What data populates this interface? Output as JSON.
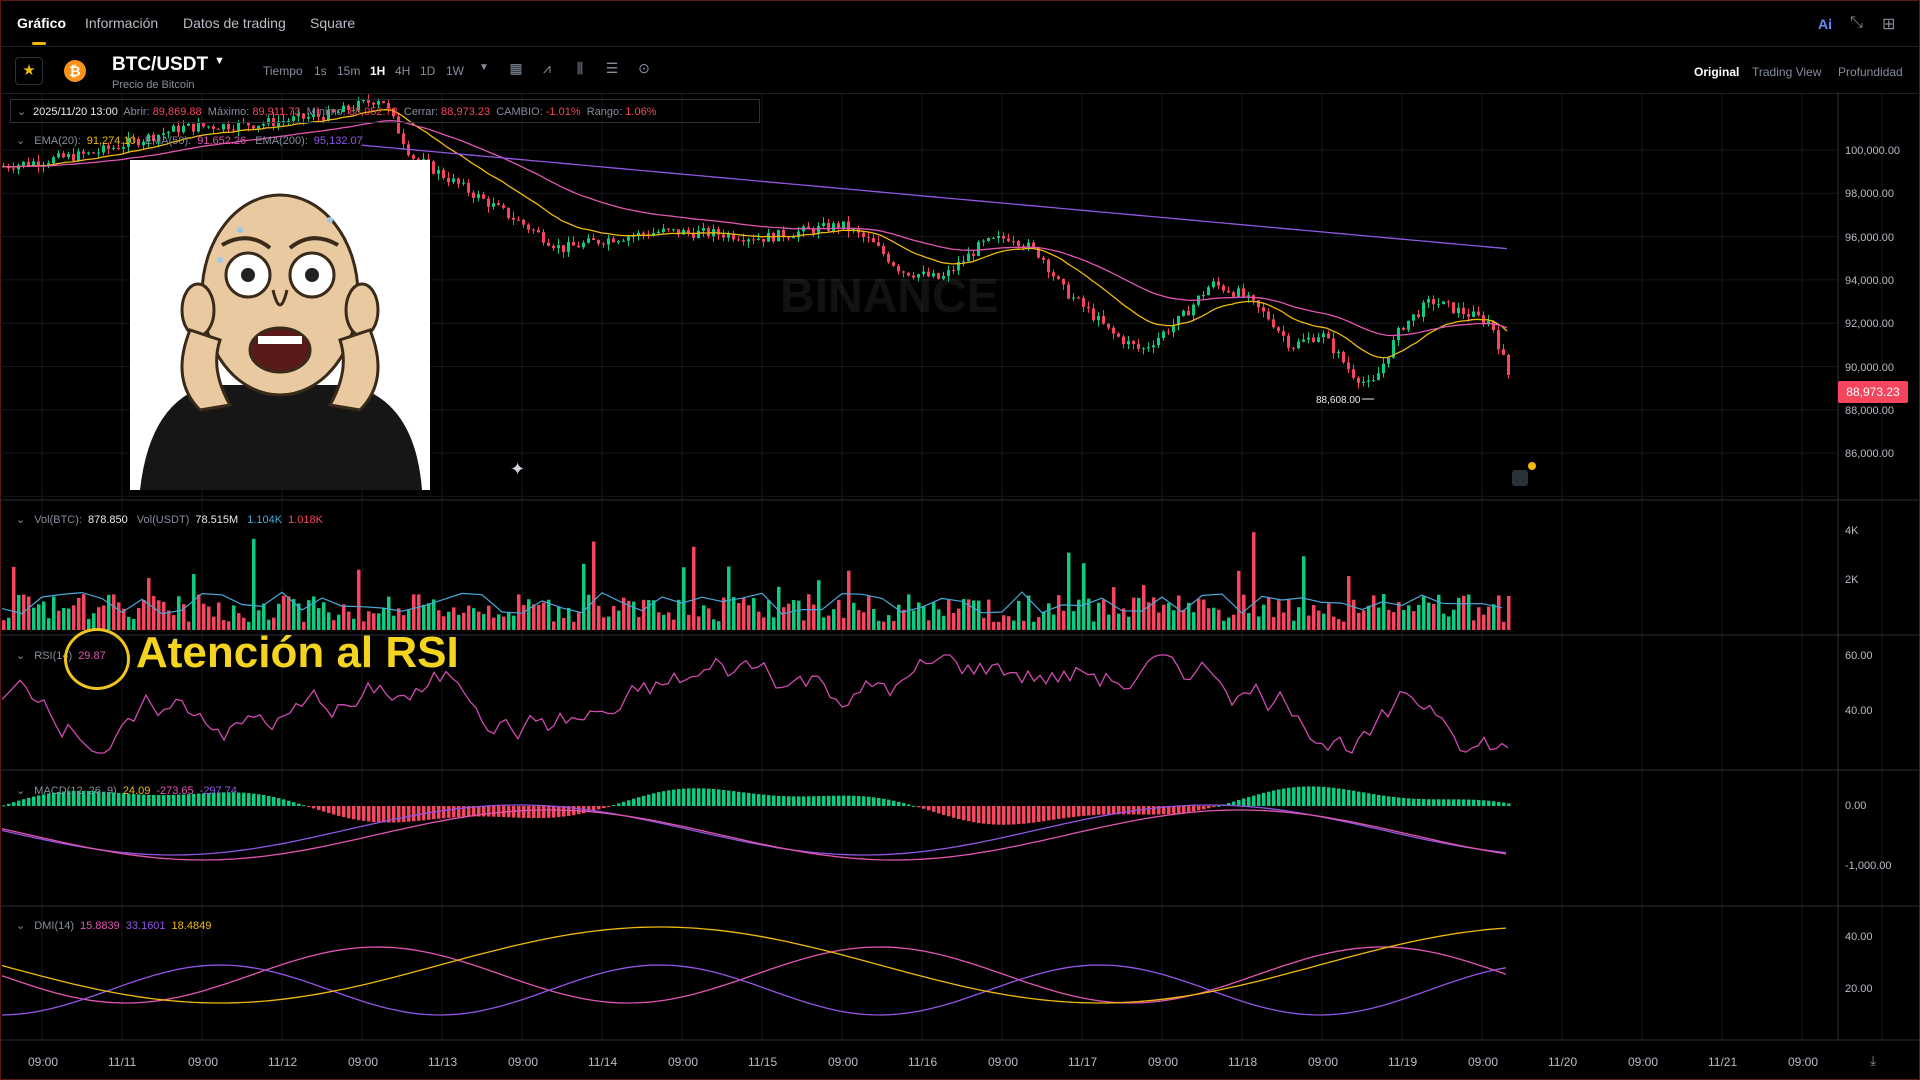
{
  "nav": {
    "tabs": [
      "Gráfico",
      "Información",
      "Datos de trading",
      "Square"
    ],
    "active_tab": "Gráfico",
    "right_icons": [
      "ai-icon",
      "collapse-icon",
      "grid-icon"
    ]
  },
  "toolbar": {
    "pair": "BTC/USDT",
    "pair_subtitle": "Precio de Bitcoin",
    "time_label": "Tiempo",
    "timeframes": [
      "1s",
      "15m",
      "1H",
      "4H",
      "1D",
      "1W"
    ],
    "active_timeframe": "1H",
    "views": [
      "Original",
      "Trading View",
      "Profundidad"
    ],
    "active_view": "Original"
  },
  "ohlc": {
    "date": "2025/11/20 13:00",
    "open_label": "Abrir:",
    "open": "89,869.88",
    "high_label": "Máximo:",
    "high": "89,911.73",
    "low_label": "Mínimo:",
    "low": "88,952.73",
    "close_label": "Cerrar:",
    "close": "88,973.23",
    "change_label": "CAMBIO:",
    "change": "-1.01%",
    "range_label": "Rango:",
    "range": "1.06%"
  },
  "ema": {
    "ema20_label": "EMA(20):",
    "ema20": "91,274.10",
    "ema50_label": "EMA(50):",
    "ema50": "91,652.26",
    "ema200_label": "EMA(200):",
    "ema200": "95,132.07"
  },
  "vol": {
    "btc_label": "Vol(BTC):",
    "btc": "878.850",
    "usdt_label": "Vol(USDT)",
    "usdt": "78.515M",
    "ma1": "1.104K",
    "ma2": "1.018K"
  },
  "rsi": {
    "label": "RSI(14)",
    "value": "29.87"
  },
  "macd": {
    "label": "MACD(12, 26, 9)",
    "v1": "24.09",
    "v2": "-273.65",
    "v3": "-297.74"
  },
  "dmi": {
    "label": "DMI(14)",
    "v1": "15.8839",
    "v2": "33.1601",
    "v3": "18.4849"
  },
  "annotation": "Atención al RSI",
  "last_price": "88,973.23",
  "low_marker": "88,608.00",
  "watermark": "BINANCE",
  "price_axis": [
    "100,000.00",
    "98,000.00",
    "96,000.00",
    "94,000.00",
    "92,000.00",
    "90,000.00",
    "88,000.00",
    "86,000.00"
  ],
  "vol_axis": [
    "4K",
    "2K"
  ],
  "rsi_axis": [
    "60.00",
    "40.00"
  ],
  "macd_axis": [
    "0.00",
    "-1,000.00"
  ],
  "dmi_axis": [
    "40.00",
    "20.00"
  ],
  "time_axis": [
    "09:00",
    "11/11",
    "09:00",
    "11/12",
    "09:00",
    "11/13",
    "09:00",
    "11/14",
    "09:00",
    "11/15",
    "09:00",
    "11/16",
    "09:00",
    "11/17",
    "09:00",
    "11/18",
    "09:00",
    "11/19",
    "09:00",
    "11/20",
    "09:00",
    "11/21",
    "09:00"
  ],
  "colors": {
    "up": "#0ecb81",
    "down": "#f6465d",
    "accent": "#f0b90b",
    "ema20": "#f0b90b",
    "ema50": "#e056b0",
    "ema200": "#9256e3"
  }
}
